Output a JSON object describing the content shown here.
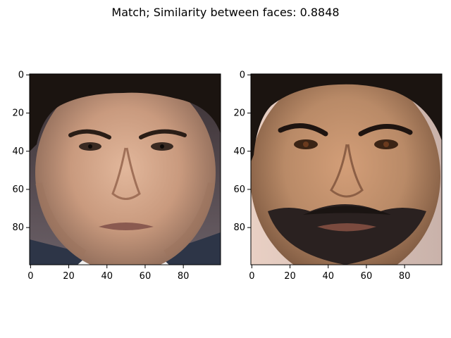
{
  "figure": {
    "title": "Match; Similarity between faces: 0.8848"
  },
  "panels": [
    {
      "image": "face-photo-1",
      "x_ticks": [
        "0",
        "20",
        "40",
        "60",
        "80"
      ],
      "y_ticks": [
        "0",
        "20",
        "40",
        "60",
        "80"
      ]
    },
    {
      "image": "face-photo-2",
      "x_ticks": [
        "0",
        "20",
        "40",
        "60",
        "80"
      ],
      "y_ticks": [
        "0",
        "20",
        "40",
        "60",
        "80"
      ]
    }
  ],
  "colors": {
    "skin_left": "#c99a7e",
    "skin_right": "#b98a67",
    "hair": "#1b1410",
    "background_left": "#5a4f54",
    "beard": "#2a2120"
  }
}
